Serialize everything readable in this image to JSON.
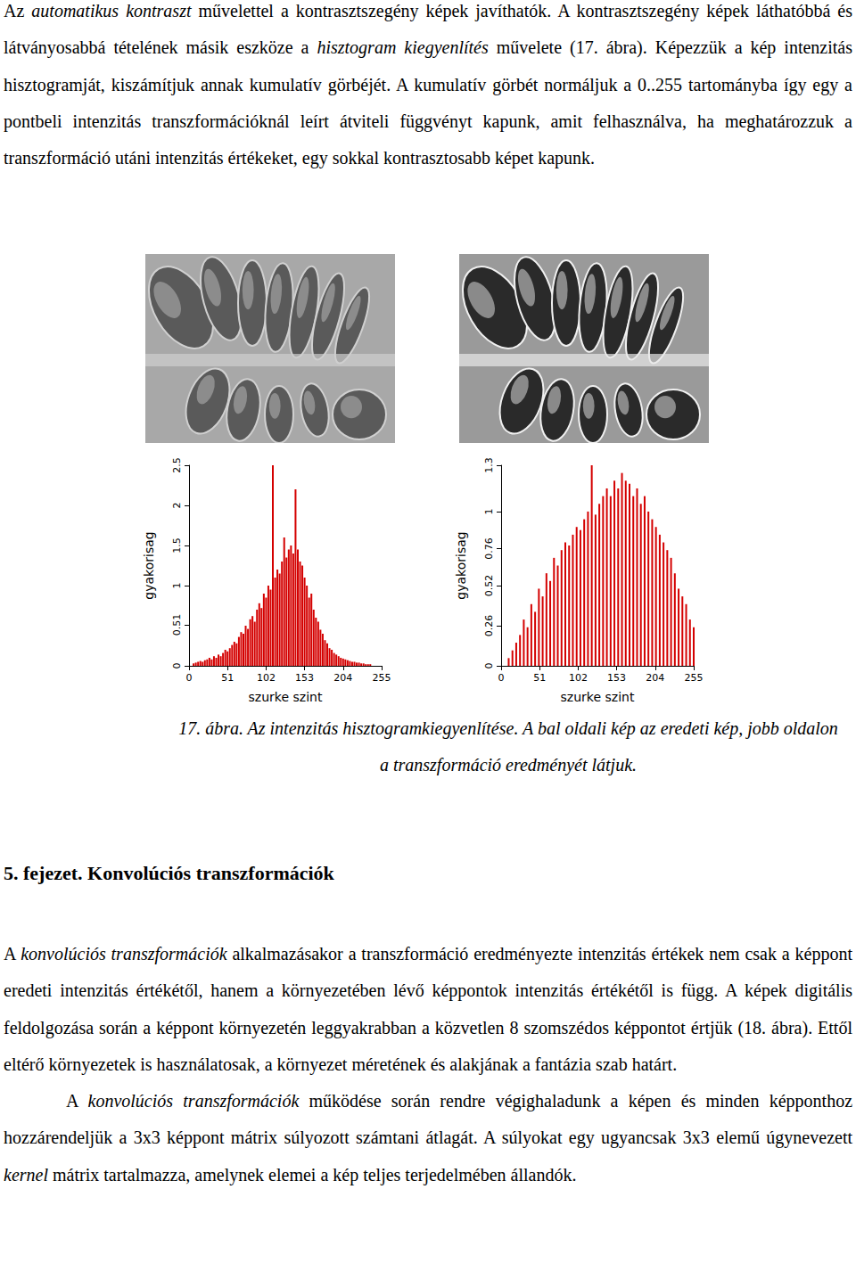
{
  "intro": [
    {
      "text": "Az ",
      "italic": false
    },
    {
      "text": "automatikus kontraszt",
      "italic": true
    },
    {
      "text": " művelettel a kontrasztszegény képek javíthatók. A kontrasztszegény képek láthatóbbá és látványosabbá tételének másik eszköze a ",
      "italic": false
    },
    {
      "text": "hisztogram kiegyenlítés",
      "italic": true
    },
    {
      "text": " művelete (17. ábra). Képezzük a kép intenzitás hisztogramját, kiszámítjuk annak kumulatív görbéjét. A kumulatív görbét normáljuk a 0..255 tartományba így egy a pontbeli intenzitás transzformációknál leírt átviteli függvényt kapunk, amit felhasználva, ha meghatározzuk a transzformáció utáni intenzitás értékeket, egy sokkal kontrasztosabb képet kapunk.",
      "italic": false
    }
  ],
  "chart_data": [
    {
      "type": "bar",
      "xlabel": "szurke szint",
      "ylabel": "gyakorisag",
      "x": [
        6,
        9,
        12,
        15,
        18,
        21,
        24,
        27,
        30,
        33,
        36,
        39,
        42,
        45,
        48,
        51,
        54,
        57,
        60,
        63,
        66,
        69,
        72,
        75,
        78,
        81,
        84,
        87,
        90,
        93,
        96,
        99,
        102,
        105,
        108,
        111,
        114,
        117,
        120,
        123,
        126,
        129,
        132,
        135,
        138,
        141,
        144,
        147,
        150,
        153,
        156,
        159,
        162,
        165,
        168,
        171,
        174,
        177,
        180,
        183,
        186,
        189,
        192,
        195,
        198,
        201,
        204,
        207,
        210,
        213,
        216,
        219,
        222,
        225,
        228,
        231,
        234,
        237,
        240
      ],
      "values": [
        0.03,
        0.04,
        0.05,
        0.06,
        0.05,
        0.07,
        0.08,
        0.1,
        0.08,
        0.12,
        0.1,
        0.14,
        0.12,
        0.16,
        0.2,
        0.18,
        0.22,
        0.26,
        0.3,
        0.28,
        0.36,
        0.42,
        0.4,
        0.5,
        0.46,
        0.58,
        0.62,
        0.55,
        0.7,
        0.78,
        0.72,
        0.9,
        0.85,
        1.0,
        0.95,
        2.5,
        1.1,
        1.2,
        1.15,
        1.3,
        1.6,
        1.35,
        1.45,
        1.5,
        1.4,
        2.2,
        1.45,
        1.3,
        1.25,
        1.1,
        1.0,
        0.85,
        0.9,
        0.7,
        0.6,
        0.55,
        0.45,
        0.4,
        0.32,
        0.28,
        0.22,
        0.2,
        0.16,
        0.14,
        0.12,
        0.1,
        0.09,
        0.08,
        0.07,
        0.06,
        0.05,
        0.05,
        0.04,
        0.04,
        0.03,
        0.03,
        0.02,
        0.02,
        0.02
      ],
      "color": "#d40000",
      "xlim": [
        0,
        255
      ],
      "xticks": [
        0,
        51,
        102,
        153,
        204,
        255
      ],
      "ylim": [
        0,
        2.5
      ],
      "yticks": [
        0,
        0.51,
        1,
        1.5,
        2,
        2.5
      ],
      "grid": false
    },
    {
      "type": "bar",
      "xlabel": "szurke szint",
      "ylabel": "gyakorisag",
      "x": [
        10,
        15,
        20,
        25,
        30,
        35,
        40,
        45,
        50,
        55,
        60,
        65,
        70,
        75,
        80,
        85,
        90,
        95,
        100,
        105,
        110,
        115,
        120,
        125,
        130,
        135,
        140,
        145,
        150,
        155,
        160,
        165,
        170,
        175,
        180,
        185,
        190,
        195,
        200,
        205,
        210,
        215,
        220,
        225,
        230,
        235,
        240,
        245,
        250,
        255
      ],
      "values": [
        0.05,
        0.1,
        0.15,
        0.2,
        0.3,
        0.25,
        0.4,
        0.35,
        0.5,
        0.45,
        0.6,
        0.55,
        0.7,
        0.65,
        0.75,
        0.8,
        0.78,
        0.85,
        0.9,
        0.88,
        0.95,
        1.0,
        1.3,
        0.98,
        1.05,
        1.1,
        1.15,
        1.1,
        1.2,
        1.15,
        1.25,
        1.2,
        1.18,
        1.1,
        1.15,
        1.05,
        1.1,
        1.0,
        0.95,
        0.9,
        0.85,
        0.8,
        0.75,
        0.7,
        0.6,
        0.5,
        0.45,
        0.4,
        0.3,
        0.25
      ],
      "color": "#d40000",
      "xlim": [
        0,
        255
      ],
      "xticks": [
        0,
        51,
        102,
        153,
        204,
        255
      ],
      "ylim": [
        0,
        1.3
      ],
      "yticks": [
        0,
        0.26,
        0.52,
        0.76,
        1,
        1.3
      ],
      "grid": false
    }
  ],
  "figure": {
    "caption": "17. ábra. Az intenzitás hisztogramkiegyenlítése. A bal oldali kép az eredeti kép, jobb oldalon a transzformáció eredményét látjuk."
  },
  "chapter": {
    "heading": "5. fejezet. Konvolúciós transzformációk",
    "paragraphs": [
      [
        {
          "text": "A ",
          "italic": false
        },
        {
          "text": "konvolúciós transzformációk",
          "italic": true
        },
        {
          "text": " alkalmazásakor a transzformáció eredményezte intenzitás értékek nem csak a képpont eredeti intenzitás értékétől, hanem a környezetében lévő képpontok intenzitás értékétől is függ. A képek digitális feldolgozása során a képpont környezetén leggyakrabban a közvetlen 8 szomszédos képpontot értjük (18. ábra). Ettől eltérő környezetek is használatosak, a környezet méretének és alakjának a fantázia szab határt.",
          "italic": false
        }
      ],
      [
        {
          "text": "A ",
          "italic": false
        },
        {
          "text": "konvolúciós transzformációk",
          "italic": true
        },
        {
          "text": " működése során rendre végighaladunk a képen és minden képponthoz hozzárendeljük a 3x3 képpont mátrix súlyozott számtani átlagát. A súlyokat egy ugyancsak 3x3 elemű úgynevezett ",
          "italic": false
        },
        {
          "text": "kernel",
          "italic": true
        },
        {
          "text": " mátrix tartalmazza, amelynek elemei a kép teljes terjedelmében állandók.",
          "italic": false
        }
      ]
    ]
  }
}
